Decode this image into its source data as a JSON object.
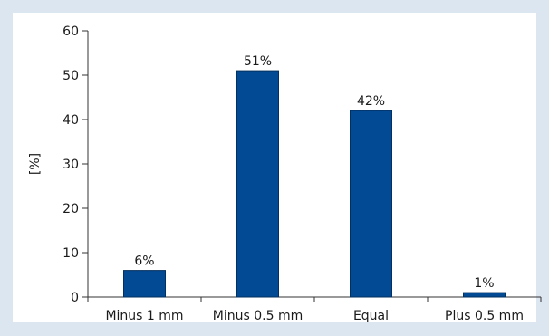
{
  "chart_data": {
    "type": "bar",
    "categories": [
      "Minus 1 mm",
      "Minus 0.5 mm",
      "Equal",
      "Plus 0.5 mm"
    ],
    "values": [
      6,
      51,
      42,
      1
    ],
    "data_labels": [
      "6%",
      "51%",
      "42%",
      "1%"
    ],
    "ylabel": "[%]",
    "xlabel": "",
    "ylim": [
      0,
      60
    ],
    "yticks": [
      0,
      10,
      20,
      30,
      40,
      50,
      60
    ],
    "grid": false,
    "legend": "none",
    "colors": {
      "bar": "#034a94",
      "plot_background": "#ffffff",
      "frame_background": "#dce6f0",
      "axis": "#333333"
    }
  }
}
